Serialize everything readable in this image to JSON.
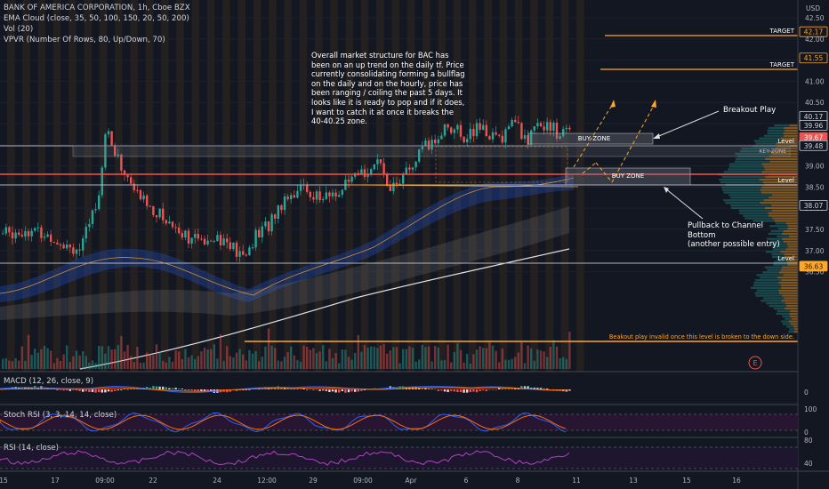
{
  "header": {
    "symbol_line": "BANK OF AMERICA CORPORATION, 1h, Cboe BZX",
    "indicators": [
      "EMA Cloud (close, 35, 50, 100, 150, 20, 50, 200)",
      "Vol (20)",
      "VPVR (Number Of Rows, 80, Up/Down, 70)"
    ]
  },
  "currency": "USD",
  "price_axis": {
    "ticks": [
      "42.50",
      "42.00",
      "41.50",
      "41.00",
      "40.50",
      "40.00",
      "39.50",
      "39.00",
      "38.50",
      "38.00",
      "37.50",
      "37.00",
      "36.50"
    ],
    "badges": [
      {
        "label": "42.17",
        "price": 42.17,
        "style": "orange-outline"
      },
      {
        "label": "41.55",
        "price": 41.55,
        "style": "orange-outline"
      },
      {
        "label": "40.17",
        "price": 40.17,
        "style": "white-outline"
      },
      {
        "label": "39.96",
        "price": 39.96,
        "style": "white-outline"
      },
      {
        "label": "39.67",
        "price": 39.67,
        "style": "red-fill"
      },
      {
        "label": "39.48",
        "price": 39.48,
        "style": "white-outline"
      },
      {
        "label": "38.07",
        "price": 38.07,
        "style": "white-outline"
      },
      {
        "label": "36.63",
        "price": 36.63,
        "style": "orange-fill"
      }
    ]
  },
  "time_axis": {
    "labels": [
      "15",
      "17",
      "09:00",
      "22",
      "24",
      "12:00",
      "29",
      "09:00",
      "Apr",
      "6",
      "8",
      "11",
      "13",
      "15",
      "16"
    ]
  },
  "drawings": {
    "targets": [
      {
        "label": "TARGET",
        "price": 42.17
      },
      {
        "label": "TARGET",
        "price": 41.55
      }
    ],
    "levels": [
      {
        "label": "Level",
        "price": 40.17
      },
      {
        "label": "Level",
        "price": 39.48
      },
      {
        "label": "Level",
        "price": 38.07
      }
    ],
    "key_zone": "KEY ZONE",
    "buy_zones": [
      "BUY ZONE",
      "BUY ZONE"
    ],
    "invalid_note": "Beakout play invalid once this level is broken to the down side.",
    "earnings_marker": "E"
  },
  "annotations": {
    "analysis": "Overall market structure for BAC has been on an up trend on the daily tf. Price currently consolidating forming a bullflag on the daily and on the hourly, price has been ranging / coiling the past 5 days.  It looks like it is ready to pop and if it does, I want to catch it at once it breaks the 40-40.25 zone.",
    "breakout": "Breakout Play",
    "pullback": [
      "Pullback to Channel",
      "Bottom",
      "(another possible entry)"
    ]
  },
  "panes": {
    "macd": {
      "label": "MACD (12, 26, close, 9)",
      "ticks": [
        "0"
      ]
    },
    "stoch": {
      "label": "Stoch RSI (3, 3, 14, 14, close)",
      "ticks": [
        "100",
        "0"
      ]
    },
    "rsi": {
      "label": "RSI (14, close)",
      "ticks": [
        "80",
        "40"
      ]
    }
  },
  "colors": {
    "background": "#131722",
    "up": "#26a69a",
    "down": "#ef5350",
    "orange": "#ffa726",
    "stoch_band": "#2a1533",
    "rsi_band": "#1f1630"
  }
}
